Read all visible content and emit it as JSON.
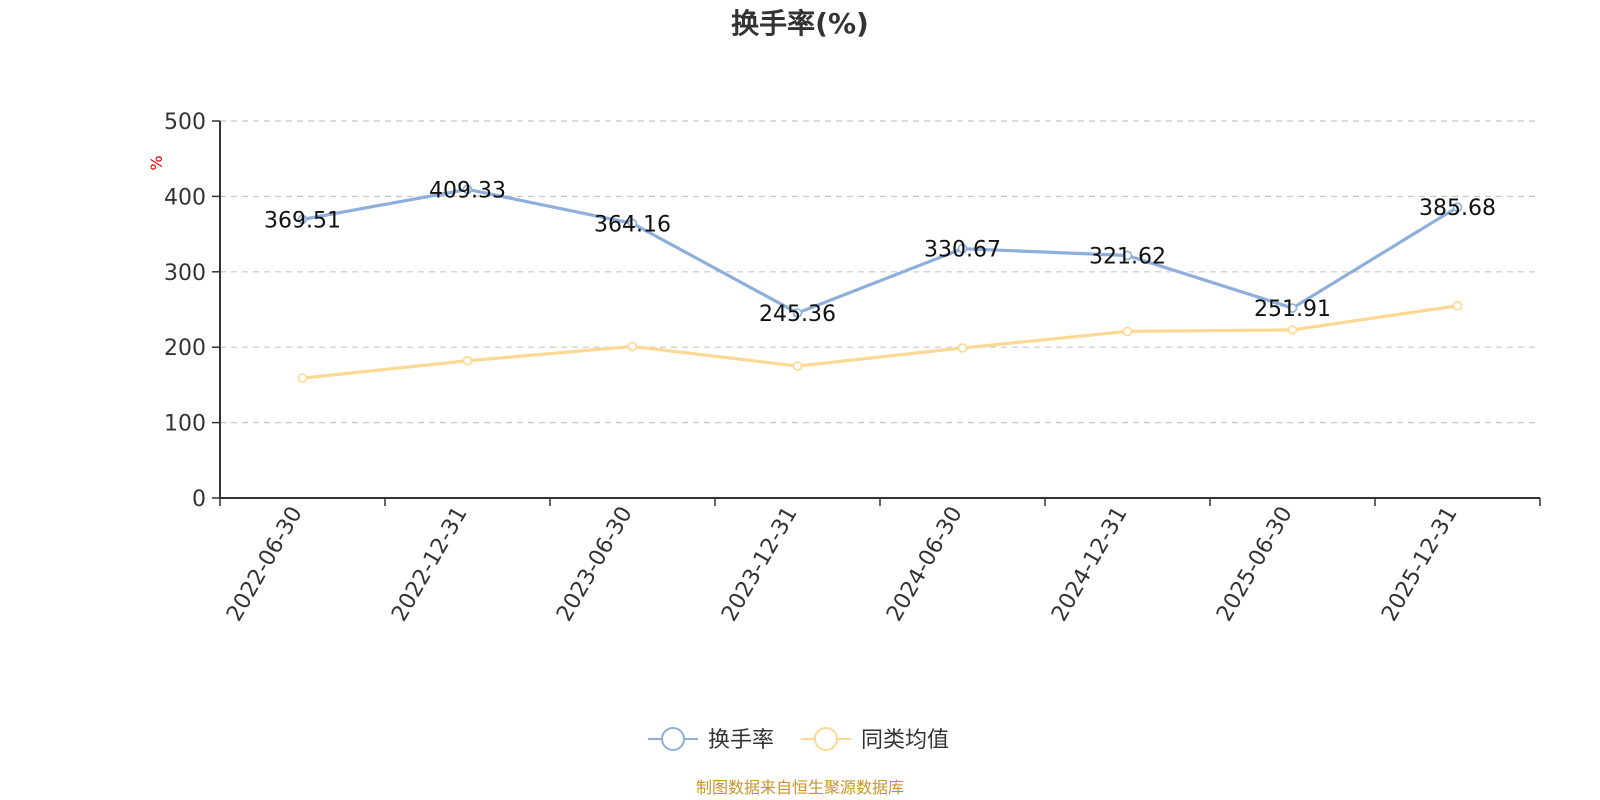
{
  "chart_data": {
    "type": "line",
    "title": "换手率(%)",
    "ylabel": "%",
    "xlabel": "",
    "categories": [
      "2022-06-30",
      "2022-12-31",
      "2023-06-30",
      "2023-12-31",
      "2024-06-30",
      "2024-12-31",
      "2025-06-30",
      "2025-12-31"
    ],
    "ylim": [
      0,
      500
    ],
    "yticks": [
      0,
      100,
      200,
      300,
      400,
      500
    ],
    "grid": true,
    "legend_position": "bottom-center",
    "series": [
      {
        "name": "换手率",
        "color": "#8eaedb",
        "values": [
          369.51,
          409.33,
          364.16,
          245.36,
          330.67,
          321.62,
          251.91,
          385.68
        ],
        "labels": [
          "369.51",
          "409.33",
          "364.16",
          "245.36",
          "330.67",
          "321.62",
          "251.91",
          "385.68"
        ]
      },
      {
        "name": "同类均值",
        "color": "#fdd893",
        "values": [
          159,
          182,
          201,
          175,
          199,
          221,
          223,
          255
        ]
      }
    ],
    "source": "制图数据来自恒生聚源数据库"
  }
}
